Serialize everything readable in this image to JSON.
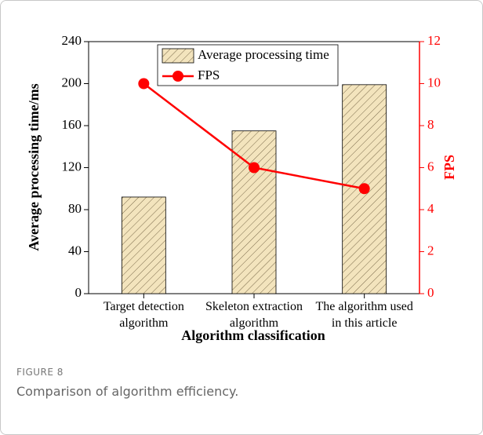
{
  "chart_data": {
    "type": "bar_line",
    "x_label": "Algorithm classification",
    "y_label": "Average processing time/ms",
    "y2_label": "FPS",
    "categories": [
      "Target detection algorithm",
      "Skeleton extraction algorithm",
      "The algorithm used in this article"
    ],
    "series": [
      {
        "name": "Average processing time",
        "type": "bar",
        "color": "#f3e4bd",
        "values": [
          92,
          155,
          199
        ]
      },
      {
        "name": "FPS",
        "type": "line",
        "color": "#ff0000",
        "axis": "y2",
        "values": [
          10,
          6,
          5
        ]
      }
    ],
    "ylim": [
      0,
      240
    ],
    "yticks": [
      0,
      40,
      80,
      120,
      160,
      200,
      240
    ],
    "y2lim": [
      0,
      12
    ],
    "y2ticks": [
      0,
      2,
      4,
      6,
      8,
      10,
      12
    ]
  },
  "figure": {
    "label": "FIGURE 8",
    "caption": "Comparison of algorithm efficiency."
  }
}
